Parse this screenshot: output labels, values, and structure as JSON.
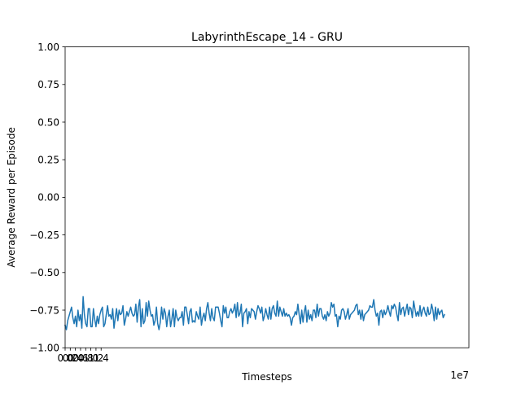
{
  "chart_data": {
    "type": "line",
    "title": "LabyrinthEscape_14 - GRU",
    "xlabel": "Timesteps",
    "ylabel": "Average Reward per Episode",
    "x_offset_label": "1e7",
    "xlim": [
      0,
      15.7
    ],
    "ylim": [
      -1.0,
      1.0
    ],
    "grid": false,
    "x_ticks": [
      {
        "value": 0.0,
        "label": "0.0"
      },
      {
        "value": 0.2,
        "label": "0.2"
      },
      {
        "value": 0.4,
        "label": "0.4"
      },
      {
        "value": 0.6,
        "label": "0.6"
      },
      {
        "value": 0.8,
        "label": "0.8"
      },
      {
        "value": 1.0,
        "label": "1.0"
      },
      {
        "value": 1.2,
        "label": "1.2"
      },
      {
        "value": 1.4,
        "label": "1.4"
      }
    ],
    "y_ticks": [
      {
        "value": 1.0,
        "label": "1.00"
      },
      {
        "value": 0.75,
        "label": "0.75"
      },
      {
        "value": 0.5,
        "label": "0.50"
      },
      {
        "value": 0.25,
        "label": "0.25"
      },
      {
        "value": 0.0,
        "label": "0.00"
      },
      {
        "value": -0.25,
        "label": "−0.25"
      },
      {
        "value": -0.5,
        "label": "−0.50"
      },
      {
        "value": -0.75,
        "label": "−0.75"
      },
      {
        "value": -1.0,
        "label": "−1.00"
      }
    ],
    "series": [
      {
        "color": "#1f77b4",
        "x_start": 0.0,
        "x_step": 0.05,
        "values": [
          -0.85,
          -0.88,
          -0.82,
          -0.79,
          -0.76,
          -0.73,
          -0.8,
          -0.84,
          -0.79,
          -0.86,
          -0.75,
          -0.82,
          -0.78,
          -0.87,
          -0.66,
          -0.78,
          -0.84,
          -0.86,
          -0.74,
          -0.74,
          -0.86,
          -0.86,
          -0.74,
          -0.81,
          -0.86,
          -0.79,
          -0.84,
          -0.78,
          -0.75,
          -0.73,
          -0.86,
          -0.84,
          -0.78,
          -0.72,
          -0.79,
          -0.78,
          -0.81,
          -0.74,
          -0.87,
          -0.8,
          -0.74,
          -0.82,
          -0.75,
          -0.78,
          -0.77,
          -0.72,
          -0.85,
          -0.81,
          -0.76,
          -0.79,
          -0.76,
          -0.73,
          -0.77,
          -0.79,
          -0.78,
          -0.71,
          -0.83,
          -0.73,
          -0.68,
          -0.86,
          -0.74,
          -0.84,
          -0.82,
          -0.7,
          -0.79,
          -0.69,
          -0.75,
          -0.79,
          -0.78,
          -0.85,
          -0.82,
          -0.73,
          -0.84,
          -0.88,
          -0.83,
          -0.73,
          -0.81,
          -0.74,
          -0.77,
          -0.86,
          -0.79,
          -0.75,
          -0.86,
          -0.81,
          -0.74,
          -0.86,
          -0.75,
          -0.8,
          -0.82,
          -0.8,
          -0.8,
          -0.76,
          -0.85,
          -0.73,
          -0.73,
          -0.78,
          -0.84,
          -0.76,
          -0.74,
          -0.83,
          -0.82,
          -0.83,
          -0.76,
          -0.79,
          -0.81,
          -0.73,
          -0.85,
          -0.8,
          -0.77,
          -0.82,
          -0.74,
          -0.7,
          -0.77,
          -0.82,
          -0.74,
          -0.8,
          -0.82,
          -0.73,
          -0.73,
          -0.73,
          -0.77,
          -0.82,
          -0.86,
          -0.72,
          -0.77,
          -0.73,
          -0.8,
          -0.8,
          -0.76,
          -0.74,
          -0.77,
          -0.75,
          -0.71,
          -0.8,
          -0.7,
          -0.79,
          -0.77,
          -0.71,
          -0.86,
          -0.77,
          -0.76,
          -0.74,
          -0.84,
          -0.76,
          -0.8,
          -0.74,
          -0.75,
          -0.76,
          -0.81,
          -0.76,
          -0.72,
          -0.74,
          -0.77,
          -0.73,
          -0.82,
          -0.79,
          -0.74,
          -0.78,
          -0.81,
          -0.73,
          -0.81,
          -0.74,
          -0.72,
          -0.77,
          -0.79,
          -0.69,
          -0.79,
          -0.73,
          -0.76,
          -0.79,
          -0.74,
          -0.79,
          -0.77,
          -0.79,
          -0.78,
          -0.8,
          -0.85,
          -0.8,
          -0.79,
          -0.76,
          -0.78,
          -0.71,
          -0.78,
          -0.84,
          -0.75,
          -0.83,
          -0.76,
          -0.72,
          -0.83,
          -0.75,
          -0.81,
          -0.78,
          -0.82,
          -0.75,
          -0.75,
          -0.8,
          -0.71,
          -0.79,
          -0.74,
          -0.74,
          -0.79,
          -0.81,
          -0.78,
          -0.82,
          -0.76,
          -0.79,
          -0.77,
          -0.7,
          -0.73,
          -0.71,
          -0.79,
          -0.78,
          -0.86,
          -0.79,
          -0.81,
          -0.75,
          -0.74,
          -0.76,
          -0.81,
          -0.78,
          -0.74,
          -0.81,
          -0.78,
          -0.77,
          -0.76,
          -0.75,
          -0.72,
          -0.71,
          -0.78,
          -0.75,
          -0.81,
          -0.75,
          -0.82,
          -0.78,
          -0.77,
          -0.76,
          -0.75,
          -0.72,
          -0.73,
          -0.73,
          -0.68,
          -0.75,
          -0.79,
          -0.77,
          -0.85,
          -0.76,
          -0.75,
          -0.8,
          -0.75,
          -0.78,
          -0.76,
          -0.72,
          -0.76,
          -0.79,
          -0.72,
          -0.74,
          -0.71,
          -0.73,
          -0.78,
          -0.82,
          -0.7,
          -0.78,
          -0.74,
          -0.73,
          -0.79,
          -0.75,
          -0.71,
          -0.78,
          -0.73,
          -0.74,
          -0.8,
          -0.69,
          -0.74,
          -0.79,
          -0.76,
          -0.79,
          -0.72,
          -0.79,
          -0.75,
          -0.73,
          -0.77,
          -0.79,
          -0.73,
          -0.78,
          -0.77,
          -0.71,
          -0.75,
          -0.82,
          -0.73,
          -0.81,
          -0.74,
          -0.78,
          -0.76,
          -0.75,
          -0.8,
          -0.78
        ]
      }
    ]
  }
}
